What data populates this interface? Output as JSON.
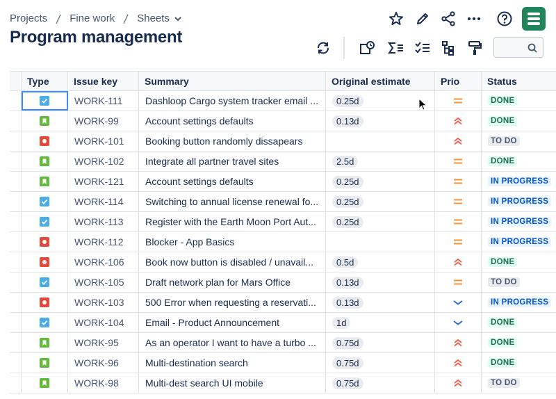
{
  "breadcrumbs": [
    "Projects",
    "Fine work",
    "Sheets"
  ],
  "title": "Program management",
  "table": {
    "headers": [
      "Type",
      "Issue key",
      "Summary",
      "Original estimate",
      "Prio",
      "Status"
    ],
    "rows": [
      [
        "WORK-111",
        "Dashloop Cargo system tracker email ...",
        "0.25d",
        "DONE"
      ],
      [
        "WORK-99",
        "Account settings defaults",
        "0.13d",
        "DONE"
      ],
      [
        "WORK-101",
        "Booking button randomly dissapears",
        null,
        "TO DO"
      ],
      [
        "WORK-102",
        "Integrate all partner travel sites",
        "2.5d",
        "DONE"
      ],
      [
        "WORK-121",
        "Account settings defaults",
        "0.25d",
        "IN PROGRESS"
      ],
      [
        "WORK-114",
        "Switching to annual license renewal fo...",
        "0.25d",
        "IN PROGRESS"
      ],
      [
        "WORK-113",
        "Register with the Earth Moon Port Aut...",
        "0.25d",
        "IN PROGRESS"
      ],
      [
        "WORK-112",
        "Blocker - App Basics",
        null,
        "IN PROGRESS"
      ],
      [
        "WORK-106",
        "Book now button is disabled / unavail...",
        "0.5d",
        "DONE"
      ],
      [
        "WORK-105",
        "Draft network plan for Mars Office",
        "0.13d",
        "TO DO"
      ],
      [
        "WORK-103",
        "500 Error when requesting a reservati...",
        "0.13d",
        "IN PROGRESS"
      ],
      [
        "WORK-104",
        "Email - Product Announcement",
        "1d",
        "DONE"
      ],
      [
        "WORK-95",
        "As an operator I want to have a turbo ...",
        "0.75d",
        "DONE"
      ],
      [
        "WORK-96",
        "Multi-destination search",
        "0.75d",
        "DONE"
      ],
      [
        "WORK-98",
        "Multi-dest search UI mobile",
        "0.75d",
        "TO DO"
      ]
    ]
  }
}
